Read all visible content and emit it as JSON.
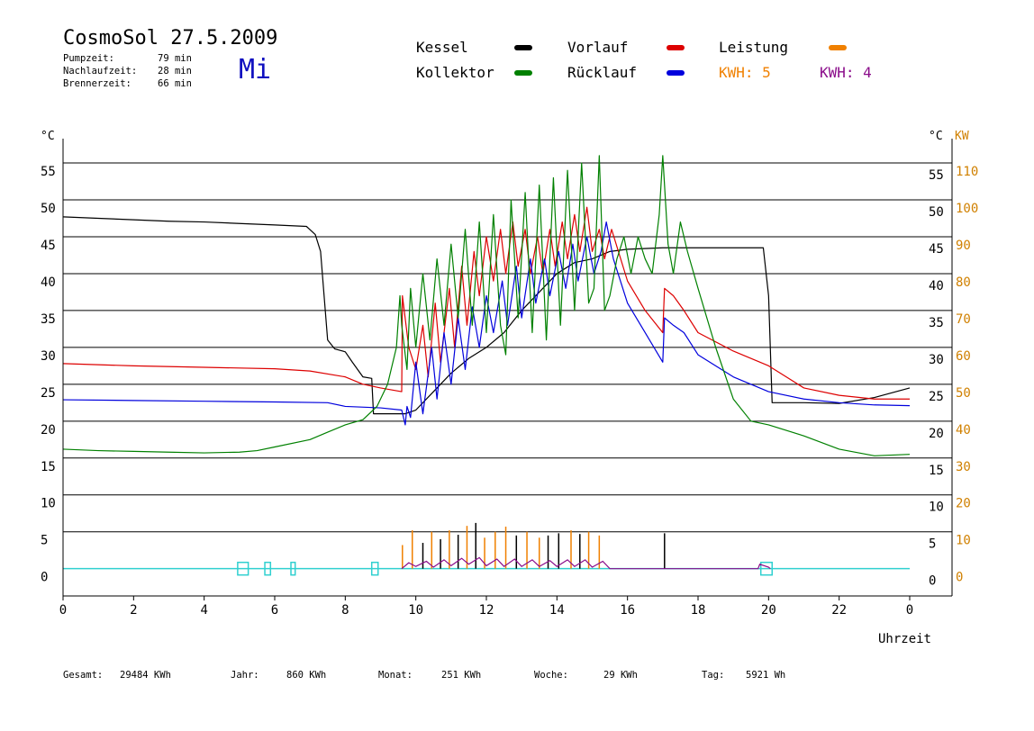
{
  "header": {
    "title": "CosmoSol 27.5.2009",
    "day": "Mi",
    "stats": [
      {
        "label": "Pumpzeit:",
        "value": "79 min"
      },
      {
        "label": "Nachlaufzeit:",
        "value": "28 min"
      },
      {
        "label": "Brennerzeit:",
        "value": "66 min"
      }
    ]
  },
  "legend": {
    "kessel": {
      "label": "Kessel",
      "color": "#000000"
    },
    "vorlauf": {
      "label": "Vorlauf",
      "color": "#dd0000"
    },
    "leistung": {
      "label": "Leistung",
      "color": "#f08000"
    },
    "kollektor": {
      "label": "Kollektor",
      "color": "#008000"
    },
    "ruecklauf": {
      "label": "Rücklauf",
      "color": "#0000dd"
    },
    "kwh_orange": "KWH: 5",
    "kwh_purple": "KWH: 4"
  },
  "footer": [
    {
      "label": "Gesamt:",
      "value": "29484 KWh"
    },
    {
      "label": "Jahr:",
      "value": "860 KWh"
    },
    {
      "label": "Monat:",
      "value": "251 KWh"
    },
    {
      "label": "Woche:",
      "value": "29 KWh"
    },
    {
      "label": "Tag:",
      "value": "5921 Wh"
    }
  ],
  "chart_data": {
    "type": "line",
    "xlabel": "Uhrzeit",
    "ylabel_left": "°C",
    "ylabel_right": "°C",
    "ylabel_power": "KW",
    "xlim": [
      0,
      24
    ],
    "ylim": [
      -3.7,
      58.3
    ],
    "x_ticks": [
      {
        "v": 0,
        "t": "0"
      },
      {
        "v": 2,
        "t": "2"
      },
      {
        "v": 4,
        "t": "4"
      },
      {
        "v": 6,
        "t": "6"
      },
      {
        "v": 8,
        "t": "8"
      },
      {
        "v": 10,
        "t": "10"
      },
      {
        "v": 12,
        "t": "12"
      },
      {
        "v": 14,
        "t": "14"
      },
      {
        "v": 16,
        "t": "16"
      },
      {
        "v": 18,
        "t": "18"
      },
      {
        "v": 20,
        "t": "20"
      },
      {
        "v": 22,
        "t": "22"
      },
      {
        "v": 24,
        "t": "0"
      }
    ],
    "y_ticks": [
      "0",
      "5",
      "10",
      "15",
      "20",
      "25",
      "30",
      "35",
      "40",
      "45",
      "50",
      "55"
    ],
    "power_ticks": [
      "0",
      "10",
      "20",
      "30",
      "40",
      "50",
      "60",
      "70",
      "80",
      "90",
      "100",
      "110"
    ],
    "series": [
      {
        "key": "kessel",
        "color": "#000000",
        "points": [
          [
            0,
            47.7
          ],
          [
            1,
            47.5
          ],
          [
            2,
            47.3
          ],
          [
            3,
            47.1
          ],
          [
            4,
            47.0
          ],
          [
            5,
            46.8
          ],
          [
            6,
            46.6
          ],
          [
            6.9,
            46.4
          ],
          [
            7.15,
            45.3
          ],
          [
            7.3,
            43
          ],
          [
            7.4,
            37
          ],
          [
            7.5,
            31
          ],
          [
            7.7,
            29.8
          ],
          [
            8,
            29.4
          ],
          [
            8.2,
            28
          ],
          [
            8.5,
            26
          ],
          [
            8.75,
            25.8
          ],
          [
            8.8,
            21
          ],
          [
            9.5,
            21
          ],
          [
            9.7,
            21
          ],
          [
            10,
            21.5
          ],
          [
            10.5,
            24
          ],
          [
            11,
            26.5
          ],
          [
            11.5,
            28.5
          ],
          [
            12,
            30
          ],
          [
            12.5,
            32
          ],
          [
            13,
            35
          ],
          [
            13.5,
            37.5
          ],
          [
            14,
            40
          ],
          [
            14.5,
            41.5
          ],
          [
            15,
            42
          ],
          [
            15.5,
            43
          ],
          [
            16,
            43.3
          ],
          [
            17,
            43.5
          ],
          [
            18,
            43.5
          ],
          [
            19,
            43.5
          ],
          [
            19.85,
            43.5
          ],
          [
            20,
            37
          ],
          [
            20.1,
            22.5
          ],
          [
            21,
            22.5
          ],
          [
            22,
            22.4
          ],
          [
            23,
            23.2
          ],
          [
            24,
            24.5
          ]
        ]
      },
      {
        "key": "vorlauf",
        "color": "#dd0000",
        "points": [
          [
            0,
            27.8
          ],
          [
            2,
            27.5
          ],
          [
            4,
            27.3
          ],
          [
            6,
            27.1
          ],
          [
            7,
            26.8
          ],
          [
            8,
            26
          ],
          [
            8.5,
            25
          ],
          [
            9.0,
            24.5
          ],
          [
            9.6,
            24
          ],
          [
            9.62,
            37
          ],
          [
            9.8,
            30
          ],
          [
            10,
            27
          ],
          [
            10.2,
            33
          ],
          [
            10.35,
            26
          ],
          [
            10.55,
            36
          ],
          [
            10.7,
            28
          ],
          [
            10.95,
            38
          ],
          [
            11.1,
            30
          ],
          [
            11.3,
            41
          ],
          [
            11.45,
            33
          ],
          [
            11.65,
            43
          ],
          [
            11.8,
            37
          ],
          [
            12,
            45
          ],
          [
            12.2,
            39
          ],
          [
            12.4,
            46
          ],
          [
            12.55,
            40
          ],
          [
            12.75,
            47
          ],
          [
            12.9,
            41
          ],
          [
            13.1,
            46
          ],
          [
            13.25,
            40
          ],
          [
            13.45,
            45
          ],
          [
            13.6,
            40
          ],
          [
            13.8,
            46
          ],
          [
            13.95,
            41
          ],
          [
            14.15,
            47
          ],
          [
            14.3,
            42
          ],
          [
            14.5,
            48
          ],
          [
            14.65,
            43
          ],
          [
            14.85,
            49
          ],
          [
            15.0,
            43
          ],
          [
            15.2,
            46
          ],
          [
            15.35,
            42
          ],
          [
            15.55,
            46
          ],
          [
            16,
            39
          ],
          [
            16.5,
            35
          ],
          [
            17,
            32
          ],
          [
            17.05,
            38
          ],
          [
            17.3,
            37
          ],
          [
            17.6,
            35
          ],
          [
            18,
            32
          ],
          [
            19,
            29.5
          ],
          [
            20,
            27.5
          ],
          [
            20.5,
            26
          ],
          [
            21,
            24.5
          ],
          [
            22,
            23.5
          ],
          [
            23,
            23
          ],
          [
            24,
            23
          ]
        ]
      },
      {
        "key": "ruecklauf",
        "color": "#0000dd",
        "points": [
          [
            0,
            22.9
          ],
          [
            2,
            22.8
          ],
          [
            4,
            22.7
          ],
          [
            6,
            22.6
          ],
          [
            7.5,
            22.5
          ],
          [
            8,
            22
          ],
          [
            9,
            21.8
          ],
          [
            9.6,
            21.5
          ],
          [
            9.7,
            19.5
          ],
          [
            9.75,
            22
          ],
          [
            9.85,
            20.5
          ],
          [
            10.0,
            28
          ],
          [
            10.2,
            21
          ],
          [
            10.45,
            30
          ],
          [
            10.6,
            23
          ],
          [
            10.8,
            32
          ],
          [
            11.0,
            25
          ],
          [
            11.2,
            34
          ],
          [
            11.4,
            27
          ],
          [
            11.6,
            35.5
          ],
          [
            11.8,
            30
          ],
          [
            12.0,
            37
          ],
          [
            12.2,
            32
          ],
          [
            12.45,
            39
          ],
          [
            12.6,
            33
          ],
          [
            12.85,
            41
          ],
          [
            13.0,
            34
          ],
          [
            13.25,
            42
          ],
          [
            13.4,
            36
          ],
          [
            13.65,
            42
          ],
          [
            13.8,
            37
          ],
          [
            14.05,
            43
          ],
          [
            14.25,
            38
          ],
          [
            14.45,
            44
          ],
          [
            14.6,
            39
          ],
          [
            14.85,
            45
          ],
          [
            15.05,
            40
          ],
          [
            15.25,
            43
          ],
          [
            15.4,
            47
          ],
          [
            15.6,
            42
          ],
          [
            16,
            36
          ],
          [
            16.5,
            32
          ],
          [
            17,
            28
          ],
          [
            17.05,
            34
          ],
          [
            17.3,
            33
          ],
          [
            17.6,
            32
          ],
          [
            18,
            29
          ],
          [
            19,
            26
          ],
          [
            20,
            24
          ],
          [
            21,
            23
          ],
          [
            22,
            22.5
          ],
          [
            23,
            22.2
          ],
          [
            24,
            22.1
          ]
        ]
      },
      {
        "key": "kollektor",
        "color": "#008000",
        "points": [
          [
            0,
            16.2
          ],
          [
            1,
            16.0
          ],
          [
            2,
            15.9
          ],
          [
            3,
            15.8
          ],
          [
            4,
            15.7
          ],
          [
            5,
            15.8
          ],
          [
            5.5,
            16.0
          ],
          [
            6,
            16.5
          ],
          [
            7,
            17.5
          ],
          [
            7.5,
            18.5
          ],
          [
            8,
            19.5
          ],
          [
            8.5,
            20.2
          ],
          [
            8.9,
            22
          ],
          [
            9.2,
            25
          ],
          [
            9.45,
            30
          ],
          [
            9.55,
            37
          ],
          [
            9.6,
            33
          ],
          [
            9.75,
            27
          ],
          [
            9.85,
            38
          ],
          [
            10.0,
            30
          ],
          [
            10.2,
            40
          ],
          [
            10.4,
            31
          ],
          [
            10.6,
            42
          ],
          [
            10.8,
            33
          ],
          [
            11.0,
            44
          ],
          [
            11.2,
            34
          ],
          [
            11.4,
            46
          ],
          [
            11.6,
            33
          ],
          [
            11.8,
            47
          ],
          [
            12.0,
            32
          ],
          [
            12.2,
            48
          ],
          [
            12.4,
            33
          ],
          [
            12.55,
            29
          ],
          [
            12.7,
            50
          ],
          [
            12.9,
            34
          ],
          [
            13.1,
            51
          ],
          [
            13.3,
            32
          ],
          [
            13.5,
            52
          ],
          [
            13.7,
            31
          ],
          [
            13.9,
            53
          ],
          [
            14.1,
            33
          ],
          [
            14.3,
            54
          ],
          [
            14.5,
            35
          ],
          [
            14.7,
            55
          ],
          [
            14.9,
            36
          ],
          [
            15.05,
            38
          ],
          [
            15.2,
            56
          ],
          [
            15.35,
            35
          ],
          [
            15.5,
            37
          ],
          [
            15.7,
            42
          ],
          [
            15.9,
            45
          ],
          [
            16.1,
            40
          ],
          [
            16.3,
            45
          ],
          [
            16.5,
            42
          ],
          [
            16.7,
            40
          ],
          [
            16.9,
            48
          ],
          [
            17.0,
            56
          ],
          [
            17.15,
            44
          ],
          [
            17.3,
            40
          ],
          [
            17.5,
            47
          ],
          [
            17.7,
            43
          ],
          [
            18,
            38
          ],
          [
            18.5,
            30
          ],
          [
            19,
            23
          ],
          [
            19.5,
            20
          ],
          [
            20,
            19.5
          ],
          [
            21,
            18
          ],
          [
            22,
            16.2
          ],
          [
            23,
            15.3
          ],
          [
            24,
            15.5
          ]
        ]
      }
    ],
    "power_spikes": [
      {
        "x": 9.62,
        "h": 3.2,
        "color": "#f08000"
      },
      {
        "x": 9.9,
        "h": 5.2,
        "color": "#f08000"
      },
      {
        "x": 10.2,
        "h": 3.5,
        "color": "#000000"
      },
      {
        "x": 10.45,
        "h": 5.0,
        "color": "#f08000"
      },
      {
        "x": 10.7,
        "h": 4.0,
        "color": "#000000"
      },
      {
        "x": 10.95,
        "h": 5.2,
        "color": "#f08000"
      },
      {
        "x": 11.2,
        "h": 4.6,
        "color": "#000000"
      },
      {
        "x": 11.45,
        "h": 5.8,
        "color": "#f08000"
      },
      {
        "x": 11.7,
        "h": 6.2,
        "color": "#000000"
      },
      {
        "x": 11.95,
        "h": 4.2,
        "color": "#f08000"
      },
      {
        "x": 12.25,
        "h": 5.0,
        "color": "#f08000"
      },
      {
        "x": 12.55,
        "h": 5.7,
        "color": "#f08000"
      },
      {
        "x": 12.85,
        "h": 4.5,
        "color": "#000000"
      },
      {
        "x": 13.15,
        "h": 5.0,
        "color": "#f08000"
      },
      {
        "x": 13.5,
        "h": 4.2,
        "color": "#f08000"
      },
      {
        "x": 13.75,
        "h": 4.5,
        "color": "#000000"
      },
      {
        "x": 14.05,
        "h": 4.8,
        "color": "#000000"
      },
      {
        "x": 14.4,
        "h": 5.2,
        "color": "#f08000"
      },
      {
        "x": 14.65,
        "h": 4.7,
        "color": "#000000"
      },
      {
        "x": 14.9,
        "h": 5.0,
        "color": "#f08000"
      },
      {
        "x": 15.2,
        "h": 4.5,
        "color": "#f08000"
      },
      {
        "x": 17.05,
        "h": 4.8,
        "color": "#000000"
      }
    ],
    "power_purple": [
      [
        9.6,
        0
      ],
      [
        9.8,
        0.8
      ],
      [
        10,
        0.3
      ],
      [
        10.3,
        1.0
      ],
      [
        10.5,
        0.2
      ],
      [
        10.8,
        1.2
      ],
      [
        11.0,
        0.4
      ],
      [
        11.3,
        1.4
      ],
      [
        11.5,
        0.6
      ],
      [
        11.8,
        1.5
      ],
      [
        12.0,
        0.4
      ],
      [
        12.3,
        1.3
      ],
      [
        12.5,
        0.3
      ],
      [
        12.8,
        1.3
      ],
      [
        13.0,
        0.3
      ],
      [
        13.3,
        1.2
      ],
      [
        13.5,
        0.3
      ],
      [
        13.8,
        1.1
      ],
      [
        14.0,
        0.3
      ],
      [
        14.3,
        1.2
      ],
      [
        14.5,
        0.3
      ],
      [
        14.8,
        1.2
      ],
      [
        15.0,
        0.2
      ],
      [
        15.3,
        1.0
      ],
      [
        15.5,
        0
      ],
      [
        19.7,
        0
      ],
      [
        19.75,
        0.6
      ],
      [
        20.0,
        0.2
      ],
      [
        20.05,
        0
      ]
    ],
    "pump_pulses": [
      [
        4.95,
        5.25
      ],
      [
        5.72,
        5.88
      ],
      [
        6.46,
        6.58
      ],
      [
        8.75,
        8.93
      ],
      [
        19.78,
        20.1
      ]
    ],
    "pulse_color": "#30d0d0",
    "grid": true
  }
}
